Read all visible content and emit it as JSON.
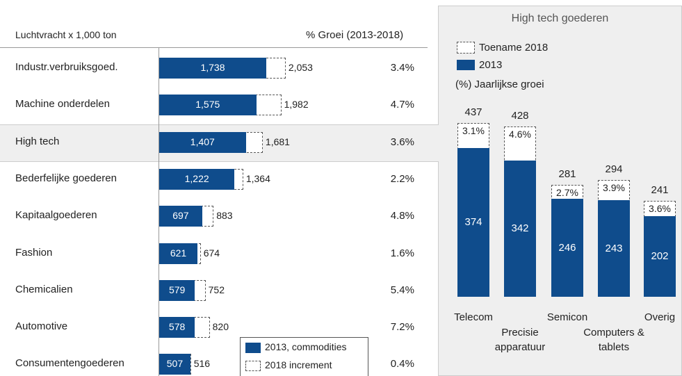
{
  "chart_data": [
    {
      "type": "hbar",
      "label_header": "Luchtvracht x 1,000 ton",
      "growth_header": "% Groei (2013-2018)",
      "categories": [
        "Industr.verbruiksgoed.",
        "Machine onderdelen",
        "High tech",
        "Bederfelijke goederen",
        "Kapitaalgoederen",
        "Fashion",
        "Chemicalien",
        "Automotive",
        "Consumentengoederen"
      ],
      "highlight": 2,
      "series": [
        {
          "name": "2013, commodities",
          "color": "#0f4c8c",
          "values": [
            1738,
            1575,
            1407,
            1222,
            697,
            621,
            579,
            578,
            507
          ],
          "value_labels": [
            "1,738",
            "1,575",
            "1,407",
            "1,222",
            "697",
            "621",
            "579",
            "578",
            "507"
          ]
        },
        {
          "name": "2018 increment",
          "color": "#ffffff",
          "values": [
            2053,
            1982,
            1681,
            1364,
            883,
            674,
            752,
            820,
            516
          ],
          "value_labels": [
            "2,053",
            "1,982",
            "1,681",
            "1,364",
            "883",
            "674",
            "752",
            "820",
            "516"
          ]
        }
      ],
      "growth": {
        "values": [
          3.4,
          4.7,
          3.6,
          2.2,
          4.8,
          1.6,
          5.4,
          7.2,
          0.4
        ],
        "value_labels": [
          "3.4%",
          "4.7%",
          "3.6%",
          "2.2%",
          "4.8%",
          "1.6%",
          "5.4%",
          "7.2%",
          "0.4%"
        ]
      }
    },
    {
      "type": "bar",
      "title": "High tech goederen",
      "categories": [
        "Telecom",
        "Precisie apparatuur",
        "Semicon",
        "Computers & tablets",
        "Overig"
      ],
      "series": [
        {
          "name": "2013",
          "color": "#0f4c8c",
          "values": [
            374,
            342,
            246,
            243,
            202
          ]
        },
        {
          "name": "Toename 2018",
          "color": "#ffffff",
          "values": [
            437,
            428,
            281,
            294,
            241
          ]
        }
      ],
      "growth": {
        "name": "(%) Jaarlijkse groei",
        "values": [
          3.1,
          4.6,
          2.7,
          3.9,
          3.6
        ],
        "value_labels": [
          "3.1%",
          "4.6%",
          "2.7%",
          "3.9%",
          "3.6%"
        ]
      }
    }
  ]
}
